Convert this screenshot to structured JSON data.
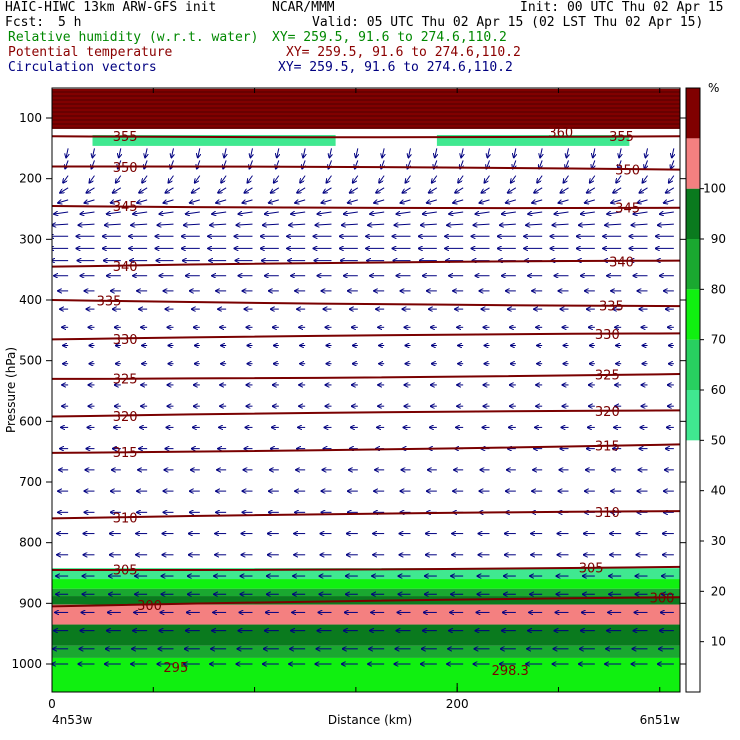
{
  "header": {
    "model": "HAIC-HIWC 13km ARW-GFS init",
    "org": "NCAR/MMM",
    "init": "Init: 00 UTC Thu 02 Apr 15",
    "fcst_label": "Fcst:",
    "fcst_value": "5 h",
    "valid": "Valid: 05 UTC Thu 02 Apr 15 (02 LST Thu 02 Apr 15)",
    "fields": [
      {
        "name": "Relative humidity (w.r.t. water)",
        "xy": "XY= 259.5, 91.6 to 274.6,110.2",
        "color": "#008800"
      },
      {
        "name": "Potential temperature",
        "xy": "XY= 259.5, 91.6 to 274.6,110.2",
        "color": "#8b0000"
      },
      {
        "name": "Circulation vectors",
        "xy": "XY= 259.5, 91.6 to 274.6,110.2",
        "color": "#000080"
      }
    ]
  },
  "chart_data": {
    "type": "heatmap",
    "xlabel": "Distance (km)",
    "ylabel": "Pressure (hPa)",
    "x_ticks": [
      0,
      200
    ],
    "x_end_labels": {
      "left": "4n53w",
      "right": "6n51w"
    },
    "xlim": [
      0,
      310
    ],
    "y_ticks": [
      100,
      200,
      300,
      400,
      500,
      600,
      700,
      800,
      900,
      1000
    ],
    "ylim": [
      50,
      1050
    ],
    "y_scale": "log-pressure",
    "colorbar": {
      "unit": "%",
      "ticks": [
        10,
        20,
        30,
        40,
        50,
        60,
        70,
        80,
        90,
        100
      ],
      "levels": [
        {
          "min": 50,
          "max": 60,
          "color": "#40e890"
        },
        {
          "min": 60,
          "max": 70,
          "color": "#28d060"
        },
        {
          "min": 70,
          "max": 80,
          "color": "#10f010"
        },
        {
          "min": 80,
          "max": 90,
          "color": "#1aa830"
        },
        {
          "min": 90,
          "max": 100,
          "color": "#0a7a1e"
        },
        {
          "min": 100,
          "max": 110,
          "color": "#f48080"
        },
        {
          "min": 110,
          "max": 120,
          "color": "#800000"
        }
      ]
    },
    "rh_regions": [
      {
        "p_top": 52,
        "p_bottom": 118,
        "x0": 0,
        "x1": 310,
        "level": 6
      },
      {
        "p_top": 128,
        "p_bottom": 146,
        "x0": 20,
        "x1": 140,
        "level": 0
      },
      {
        "p_top": 128,
        "p_bottom": 146,
        "x0": 190,
        "x1": 285,
        "level": 0
      },
      {
        "p_top": 842,
        "p_bottom": 860,
        "x0": 0,
        "x1": 310,
        "level": 0
      },
      {
        "p_top": 860,
        "p_bottom": 876,
        "x0": 0,
        "x1": 310,
        "level": 2
      },
      {
        "p_top": 876,
        "p_bottom": 888,
        "x0": 0,
        "x1": 310,
        "level": 3
      },
      {
        "p_top": 888,
        "p_bottom": 902,
        "x0": 0,
        "x1": 310,
        "level": 4
      },
      {
        "p_top": 902,
        "p_bottom": 935,
        "x0": 0,
        "x1": 310,
        "level": 5
      },
      {
        "p_top": 935,
        "p_bottom": 970,
        "x0": 0,
        "x1": 310,
        "level": 4
      },
      {
        "p_top": 970,
        "p_bottom": 990,
        "x0": 0,
        "x1": 310,
        "level": 3
      },
      {
        "p_top": 990,
        "p_bottom": 1050,
        "x0": 0,
        "x1": 310,
        "level": 2
      }
    ],
    "theta_contours": [
      {
        "value": 300,
        "p_left": 905,
        "p_right": 890,
        "label_x": 42,
        "label": "300",
        "label_x2": 295
      },
      {
        "value": 305,
        "p_left": 845,
        "p_right": 840,
        "label_x": 30,
        "label": "305",
        "label_x2": 260
      },
      {
        "value": 310,
        "p_left": 760,
        "p_right": 748,
        "label_x": 30,
        "label": "310",
        "label_x2": 268
      },
      {
        "value": 315,
        "p_left": 652,
        "p_right": 638,
        "label_x": 30,
        "label": "315",
        "label_x2": 268
      },
      {
        "value": 320,
        "p_left": 592,
        "p_right": 582,
        "label_x": 30,
        "label": "320",
        "label_x2": 268
      },
      {
        "value": 325,
        "p_left": 530,
        "p_right": 522,
        "label_x": 30,
        "label": "325",
        "label_x2": 268
      },
      {
        "value": 330,
        "p_left": 465,
        "p_right": 455,
        "label_x": 30,
        "label": "330",
        "label_x2": 268
      },
      {
        "value": 335,
        "p_left": 400,
        "p_right": 410,
        "label_x": 22,
        "label": "335",
        "label_x2": 270
      },
      {
        "value": 340,
        "p_left": 345,
        "p_right": 335,
        "label_x": 30,
        "label": "340",
        "label_x2": 275
      },
      {
        "value": 345,
        "p_left": 245,
        "p_right": 248,
        "label_x": 30,
        "label": "345",
        "label_x2": 278
      },
      {
        "value": 350,
        "p_left": 180,
        "p_right": 185,
        "label_x": 30,
        "label": "350",
        "label_x2": 278
      },
      {
        "value": 355,
        "p_left": 130,
        "p_right": 130,
        "label_x": 30,
        "label": "355",
        "label_x2": 275
      }
    ],
    "extra_labels": [
      {
        "text": "360",
        "x": 245,
        "p": 123
      },
      {
        "text": "295",
        "x": 55,
        "p": 1005
      },
      {
        "text": "298.3",
        "x": 217,
        "p": 1010
      }
    ],
    "vectors": {
      "description": "wind vectors",
      "x_start": 5,
      "x_step": 13,
      "count_x": 24,
      "levels": [
        {
          "p": 150,
          "dx": -2,
          "dy": 9
        },
        {
          "p": 170,
          "dx": -3,
          "dy": 8
        },
        {
          "p": 195,
          "dx": -5,
          "dy": 7
        },
        {
          "p": 215,
          "dx": -8,
          "dy": 5
        },
        {
          "p": 235,
          "dx": -10,
          "dy": 3
        },
        {
          "p": 255,
          "dx": -14,
          "dy": 2
        },
        {
          "p": 275,
          "dx": -16,
          "dy": 1
        },
        {
          "p": 295,
          "dx": -18,
          "dy": 0
        },
        {
          "p": 315,
          "dx": -18,
          "dy": 0
        },
        {
          "p": 335,
          "dx": -17,
          "dy": 0
        },
        {
          "p": 360,
          "dx": -14,
          "dy": 0
        },
        {
          "p": 385,
          "dx": -10,
          "dy": 0
        },
        {
          "p": 415,
          "dx": -8,
          "dy": 0
        },
        {
          "p": 445,
          "dx": -6,
          "dy": 0
        },
        {
          "p": 475,
          "dx": -5,
          "dy": 0
        },
        {
          "p": 505,
          "dx": -5,
          "dy": 0
        },
        {
          "p": 540,
          "dx": -6,
          "dy": 0
        },
        {
          "p": 575,
          "dx": -6,
          "dy": 0
        },
        {
          "p": 610,
          "dx": -7,
          "dy": 0
        },
        {
          "p": 645,
          "dx": -8,
          "dy": 0
        },
        {
          "p": 680,
          "dx": -9,
          "dy": 0
        },
        {
          "p": 715,
          "dx": -10,
          "dy": 0
        },
        {
          "p": 750,
          "dx": -10,
          "dy": 0
        },
        {
          "p": 785,
          "dx": -11,
          "dy": 0
        },
        {
          "p": 820,
          "dx": -11,
          "dy": 0
        },
        {
          "p": 855,
          "dx": -12,
          "dy": 0
        },
        {
          "p": 885,
          "dx": -12,
          "dy": 0
        },
        {
          "p": 915,
          "dx": -13,
          "dy": 0
        },
        {
          "p": 945,
          "dx": -14,
          "dy": 0
        },
        {
          "p": 975,
          "dx": -15,
          "dy": 0
        },
        {
          "p": 1000,
          "dx": -16,
          "dy": 0
        }
      ]
    }
  }
}
